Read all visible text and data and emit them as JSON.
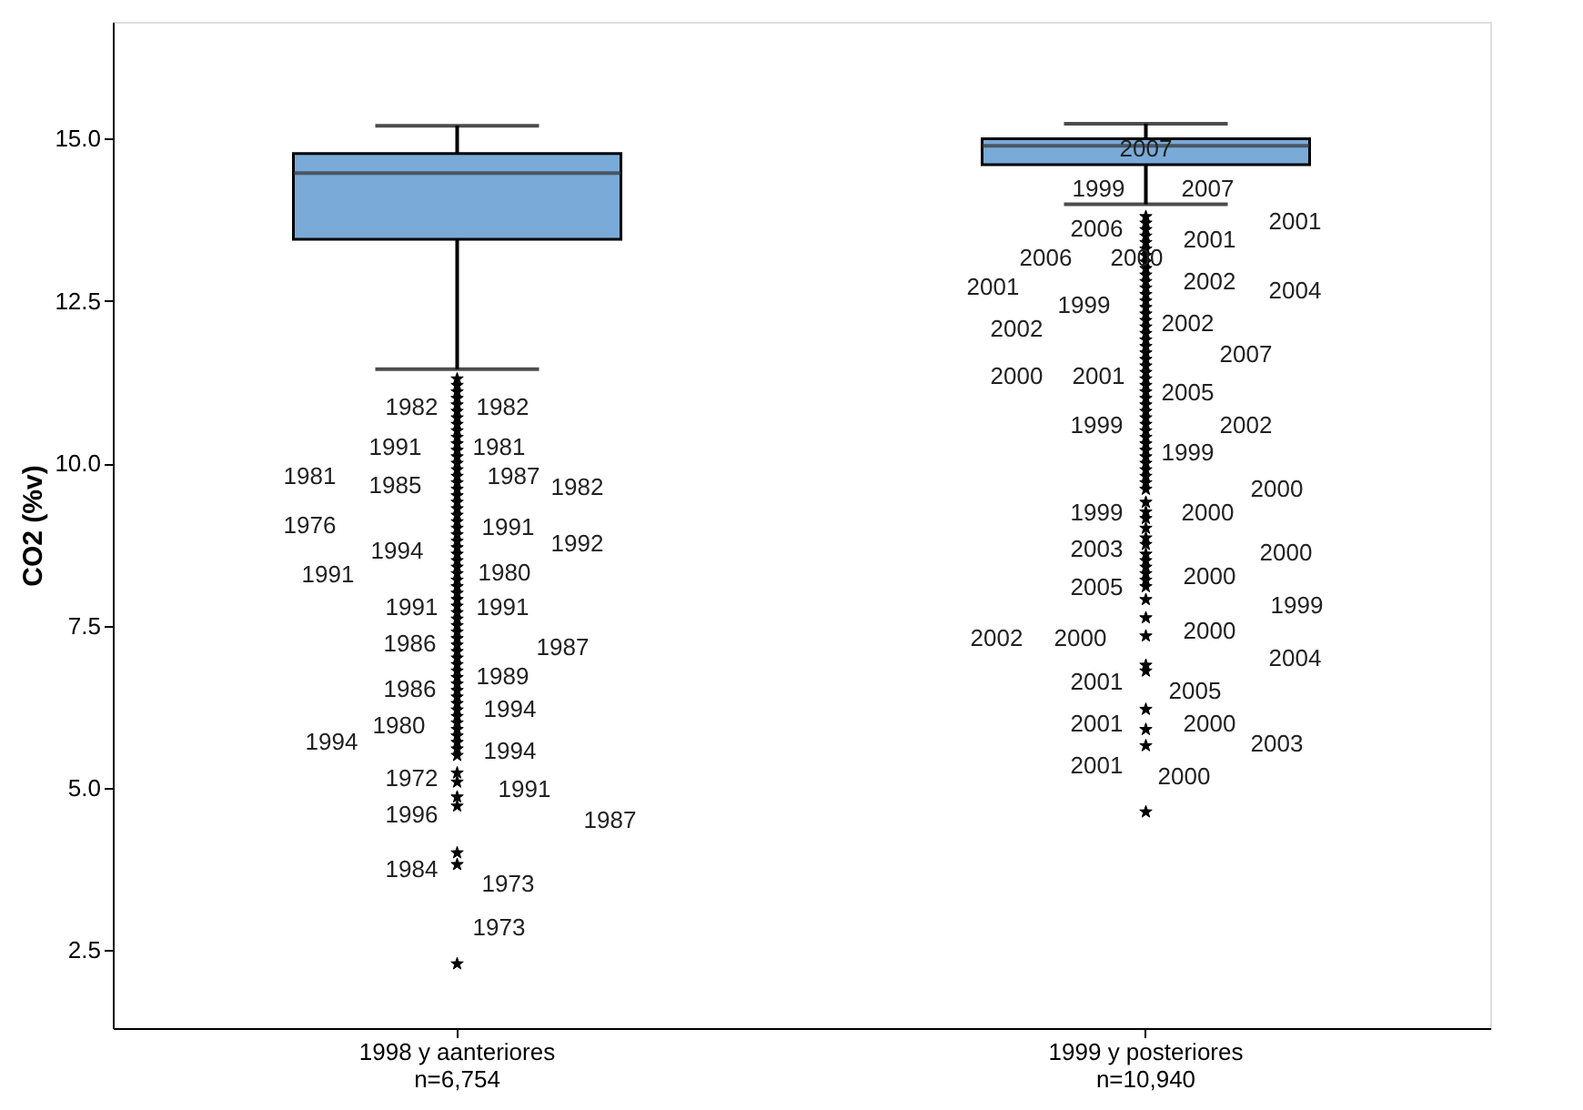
{
  "chart_data": {
    "type": "box",
    "ylabel": "CO2 (%v)",
    "categories": [
      "1998 y aanteriores\nn=6,754",
      "1999 y posteriores\nn=10,940"
    ],
    "ylim": [
      1.3,
      16.8
    ],
    "yticks": [
      {
        "value": 2.5,
        "label": "2.5"
      },
      {
        "value": 5,
        "label": "5.0"
      },
      {
        "value": 7.5,
        "label": "7.5"
      },
      {
        "value": 10,
        "label": "10.0"
      },
      {
        "value": 12.5,
        "label": "12.5"
      },
      {
        "value": 15,
        "label": "15.0"
      }
    ],
    "grid": false,
    "marker": "star",
    "series": [
      {
        "color": "#7aaad8",
        "boxes": [
          {
            "low": 11.45,
            "q1": 13.45,
            "median": 14.47,
            "q3": 14.77,
            "high": 15.2,
            "outliers": [
              11.3,
              11.2,
              11.1,
              11.0,
              10.9,
              10.8,
              10.7,
              10.6,
              10.5,
              10.4,
              10.3,
              10.2,
              10.1,
              10.0,
              9.9,
              9.8,
              9.7,
              9.6,
              9.5,
              9.4,
              9.3,
              9.2,
              9.1,
              9.0,
              8.9,
              8.8,
              8.7,
              8.6,
              8.5,
              8.4,
              8.3,
              8.2,
              8.1,
              8.0,
              7.9,
              7.8,
              7.7,
              7.6,
              7.5,
              7.4,
              7.3,
              7.2,
              7.1,
              7.0,
              6.9,
              6.8,
              6.7,
              6.6,
              6.5,
              6.4,
              6.3,
              6.2,
              6.1,
              6.0,
              5.9,
              5.8,
              5.7,
              5.6,
              5.5,
              5.23,
              5.09,
              4.86,
              4.72,
              4.0,
              3.82,
              2.29
            ]
          },
          {
            "low": 13.99,
            "q1": 14.6,
            "median": 14.89,
            "q3": 15.0,
            "high": 15.23,
            "outliers": [
              13.8,
              13.7,
              13.6,
              13.5,
              13.4,
              13.3,
              13.2,
              13.1,
              13.0,
              12.9,
              12.8,
              12.7,
              12.6,
              12.5,
              12.4,
              12.3,
              12.2,
              12.1,
              12.0,
              11.9,
              11.8,
              11.7,
              11.6,
              11.5,
              11.4,
              11.3,
              11.2,
              11.1,
              11.0,
              10.9,
              10.8,
              10.7,
              10.6,
              10.5,
              10.4,
              10.3,
              10.2,
              10.1,
              10.0,
              9.9,
              9.8,
              9.7,
              9.6,
              9.4,
              9.25,
              9.15,
              9.0,
              8.85,
              8.75,
              8.6,
              8.5,
              8.4,
              8.3,
              8.2,
              8.1,
              7.9,
              7.62,
              7.34,
              6.89,
              6.8,
              6.21,
              5.9,
              5.65,
              4.63
            ]
          }
        ]
      }
    ],
    "annotations": [
      "1982",
      "1982",
      "1991",
      "1981",
      "1981",
      "1985",
      "1987",
      "1982",
      "1976",
      "1991",
      "1992",
      "1994",
      "1991",
      "1980",
      "1991",
      "1991",
      "1986",
      "1987",
      "1986",
      "1989",
      "1994",
      "1980",
      "1994",
      "1994",
      "1972",
      "1991",
      "1996",
      "1987",
      "1984",
      "1973",
      "1973",
      "2007",
      "1999",
      "2007",
      "2001",
      "2006",
      "2001",
      "2006",
      "2000",
      "2001",
      "2002",
      "2004",
      "1999",
      "2002",
      "2002",
      "2007",
      "2000",
      "2001",
      "2005",
      "1999",
      "2002",
      "1999",
      "2000",
      "1999",
      "2000",
      "2003",
      "2000",
      "2000",
      "2005",
      "1999",
      "2002",
      "2000",
      "2000",
      "2004",
      "2001",
      "2005",
      "2001",
      "2000",
      "2003",
      "2001",
      "2000"
    ]
  }
}
